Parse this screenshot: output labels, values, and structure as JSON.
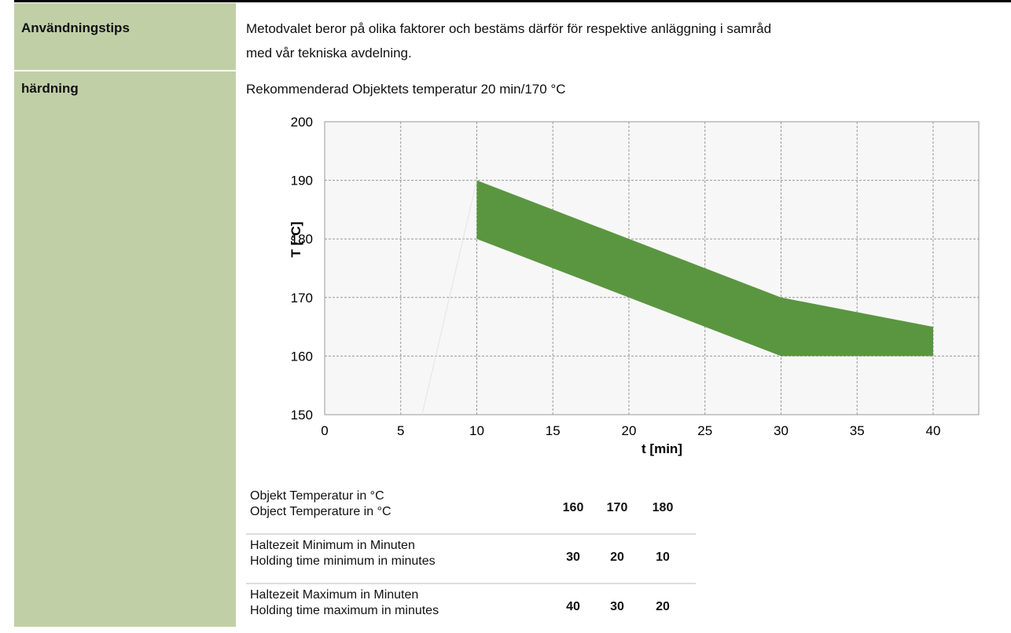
{
  "rows": [
    {
      "label": "Användningstips",
      "text": [
        "Metodvalet beror på olika faktorer och bestäms därför för respektive anläggning i samråd",
        "med vår tekniska avdelning."
      ]
    },
    {
      "label": "härdning",
      "text": "Rekommenderad Objektets temperatur 20 min/170 °C"
    }
  ],
  "chart_data": {
    "type": "area",
    "xlabel": "t [min]",
    "ylabel": "T [°C]",
    "xlim": [
      0,
      43
    ],
    "ylim": [
      150,
      200
    ],
    "xticks": [
      0,
      5,
      10,
      15,
      20,
      25,
      30,
      35,
      40
    ],
    "yticks": [
      150,
      160,
      170,
      180,
      190,
      200
    ],
    "grid": true,
    "x": [
      10,
      30,
      40
    ],
    "upper": [
      190,
      170,
      165
    ],
    "lower": [
      180,
      160,
      160
    ],
    "color": "#5a9640",
    "ramp": {
      "x": [
        6.4,
        10
      ],
      "values": [
        150,
        190
      ],
      "color": "#e4e4e4"
    }
  },
  "table": {
    "rows": [
      {
        "label": [
          "Objekt Temperatur in °C",
          "Object Temperature in °C"
        ],
        "values": [
          160,
          170,
          180
        ]
      },
      {
        "label": [
          "Haltezeit Minimum in Minuten",
          "Holding time minimum in minutes"
        ],
        "values": [
          30,
          20,
          10
        ]
      },
      {
        "label": [
          "Haltezeit Maximum in Minuten",
          "Holding time maximum in minutes"
        ],
        "values": [
          40,
          30,
          20
        ]
      }
    ]
  }
}
